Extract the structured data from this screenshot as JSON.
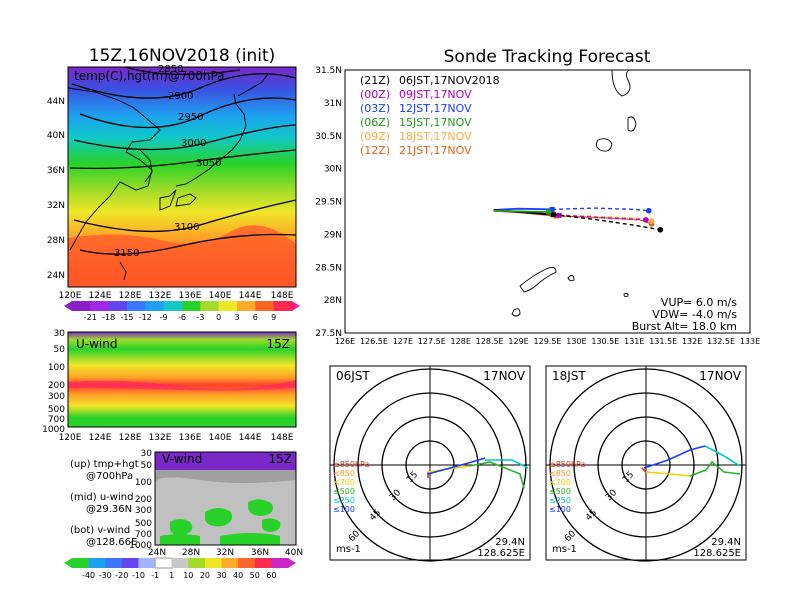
{
  "titles": {
    "left_main": "15Z,16NOV2018 (init)",
    "right_main": "Sonde Tracking Forecast"
  },
  "map_panel": {
    "label": "temp(C),hgt(m)@700hPa",
    "contour_labels": [
      "2850",
      "2900",
      "2950",
      "3000",
      "3050",
      "3100",
      "3150"
    ],
    "x_ticks": [
      "120E",
      "124E",
      "128E",
      "132E",
      "136E",
      "140E",
      "144E",
      "148E"
    ],
    "y_ticks": [
      "44N",
      "40N",
      "36N",
      "32N",
      "28N",
      "24N"
    ],
    "colorbar_ticks": [
      "-21",
      "-18",
      "-15",
      "-12",
      "-9",
      "-6",
      "-3",
      "0",
      "3",
      "6",
      "9"
    ]
  },
  "uwind_panel": {
    "label": "U-wind",
    "time": "15Z",
    "y_ticks": [
      "30",
      "50",
      "100",
      "200",
      "300",
      "500",
      "700",
      "1000"
    ],
    "x_ticks": [
      "120E",
      "124E",
      "128E",
      "132E",
      "136E",
      "140E",
      "144E",
      "148E"
    ]
  },
  "vwind_panel": {
    "label": "V-wind",
    "time": "15Z",
    "y_ticks": [
      "30",
      "50",
      "100",
      "200",
      "300",
      "500",
      "700",
      "1000"
    ],
    "x_ticks": [
      "24N",
      "28N",
      "32N",
      "36N",
      "40N"
    ]
  },
  "legend_notes": {
    "up_line1": "(up) tmp+hgt",
    "up_line2": "@700hPa",
    "mid_line1": "(mid) u-wind",
    "mid_line2": "@29.36N",
    "bot_line1": "(bot) v-wind",
    "bot_line2": "@128.66E"
  },
  "wind_colorbar_ticks": [
    "-40",
    "-30",
    "-20",
    "-10",
    "-1",
    "1",
    "10",
    "20",
    "30",
    "40",
    "50",
    "60"
  ],
  "tracking": {
    "launch_entries": [
      {
        "utc": "(21Z)",
        "jst": "06JST,17NOV2018",
        "color": "#000000"
      },
      {
        "utc": "(00Z)",
        "jst": "09JST,17NOV",
        "color": "#b000c8"
      },
      {
        "utc": "(03Z)",
        "jst": "12JST,17NOV",
        "color": "#1a3cff"
      },
      {
        "utc": "(06Z)",
        "jst": "15JST,17NOV",
        "color": "#1ea01e"
      },
      {
        "utc": "(09Z)",
        "jst": "18JST,17NOV",
        "color": "#ffaa3c"
      },
      {
        "utc": "(12Z)",
        "jst": "21JST,17NOV",
        "color": "#e06418"
      }
    ],
    "x_ticks": [
      "126E",
      "126.5E",
      "127E",
      "127.5E",
      "128E",
      "128.5E",
      "129E",
      "129.5E",
      "130E",
      "130.5E",
      "131E",
      "131.5E",
      "132E",
      "132.5E",
      "133E"
    ],
    "y_ticks": [
      "31.5N",
      "31N",
      "30.5N",
      "30N",
      "29.5N",
      "29N",
      "28.5N",
      "28N",
      "27.5N"
    ],
    "params": [
      "VUP= 6.0 m/s",
      "VDW= -4.0 m/s",
      "Burst Alt= 18.0 km"
    ]
  },
  "chart_data": [
    {
      "type": "heatmap",
      "title": "temp(C),hgt(m)@700hPa",
      "xlim": [
        120,
        150
      ],
      "ylim": [
        22,
        48
      ],
      "colorbar": [
        -21,
        -18,
        -15,
        -12,
        -9,
        -6,
        -3,
        0,
        3,
        6,
        9
      ],
      "contours_m": [
        2850,
        2900,
        2950,
        3000,
        3050,
        3100,
        3150
      ]
    },
    {
      "type": "line",
      "title": "Sonde Tracking Forecast",
      "xlim": [
        126,
        133
      ],
      "ylim": [
        27.5,
        31.5
      ],
      "series": [
        {
          "name": "(21Z) 06JST,17NOV2018",
          "x": [
            128.57,
            129.0,
            129.6,
            130.3,
            131.0,
            131.45
          ],
          "y": [
            29.37,
            29.34,
            29.3,
            29.23,
            29.14,
            29.07
          ]
        },
        {
          "name": "(00Z) 09JST,17NOV",
          "x": [
            128.57,
            129.1,
            129.7,
            130.5,
            131.2
          ],
          "y": [
            29.36,
            29.34,
            29.29,
            29.25,
            29.22
          ]
        },
        {
          "name": "(03Z) 12JST,17NOV",
          "x": [
            128.57,
            129.0,
            129.58,
            130.3,
            131.0,
            131.25
          ],
          "y": [
            29.37,
            29.39,
            29.38,
            29.4,
            29.38,
            29.36
          ]
        },
        {
          "name": "(06Z) 15JST,17NOV",
          "x": [
            128.57,
            129.0,
            129.52
          ],
          "y": [
            29.36,
            29.35,
            29.34
          ]
        },
        {
          "name": "(09Z) 18JST,17NOV",
          "x": [
            128.57,
            129.1,
            129.58,
            130.4,
            131.2,
            131.3
          ],
          "y": [
            29.36,
            29.35,
            29.3,
            29.27,
            29.24,
            29.2
          ]
        },
        {
          "name": "(12Z) 21JST,17NOV",
          "x": [
            128.57,
            129.1,
            129.65,
            130.5,
            131.1,
            131.3
          ],
          "y": [
            29.36,
            29.33,
            29.28,
            29.25,
            29.22,
            29.16
          ]
        }
      ]
    },
    {
      "type": "line",
      "title": "06JST 17NOV",
      "levels_hPa": [
        "≥850hPa",
        "≤850",
        "≤700",
        "≤500",
        "≤250",
        "≤100"
      ],
      "level_colors": [
        "#e03020",
        "#ff9a2e",
        "#f0d000",
        "#28b428",
        "#00c8c8",
        "#1a3cff"
      ],
      "rings_ms": [
        15,
        30,
        45,
        60
      ],
      "location": [
        "29.4N",
        "128.625E"
      ],
      "unit": "ms-1"
    },
    {
      "type": "line",
      "title": "18JST 17NOV",
      "levels_hPa": [
        "≥850hPa",
        "≤850",
        "≤700",
        "≤500",
        "≤250",
        "≤100"
      ],
      "level_colors": [
        "#e03020",
        "#ff9a2e",
        "#f0d000",
        "#28b428",
        "#00c8c8",
        "#1a3cff"
      ],
      "rings_ms": [
        15,
        30,
        45,
        60
      ],
      "location": [
        "29.4N",
        "128.625E"
      ],
      "unit": "ms-1"
    }
  ],
  "hodo_left": {
    "time": "06JST",
    "date": "17NOV",
    "lat": "29.4N",
    "lon": "128.625E",
    "unit": "ms-1"
  },
  "hodo_right": {
    "time": "18JST",
    "date": "17NOV",
    "lat": "29.4N",
    "lon": "128.625E",
    "unit": "ms-1"
  },
  "hodo_levels": [
    "≥850hPa",
    "≤850",
    "≤700",
    "≤500",
    "≤250",
    "≤100"
  ],
  "hodo_rings": [
    "15",
    "30",
    "45",
    "60"
  ]
}
